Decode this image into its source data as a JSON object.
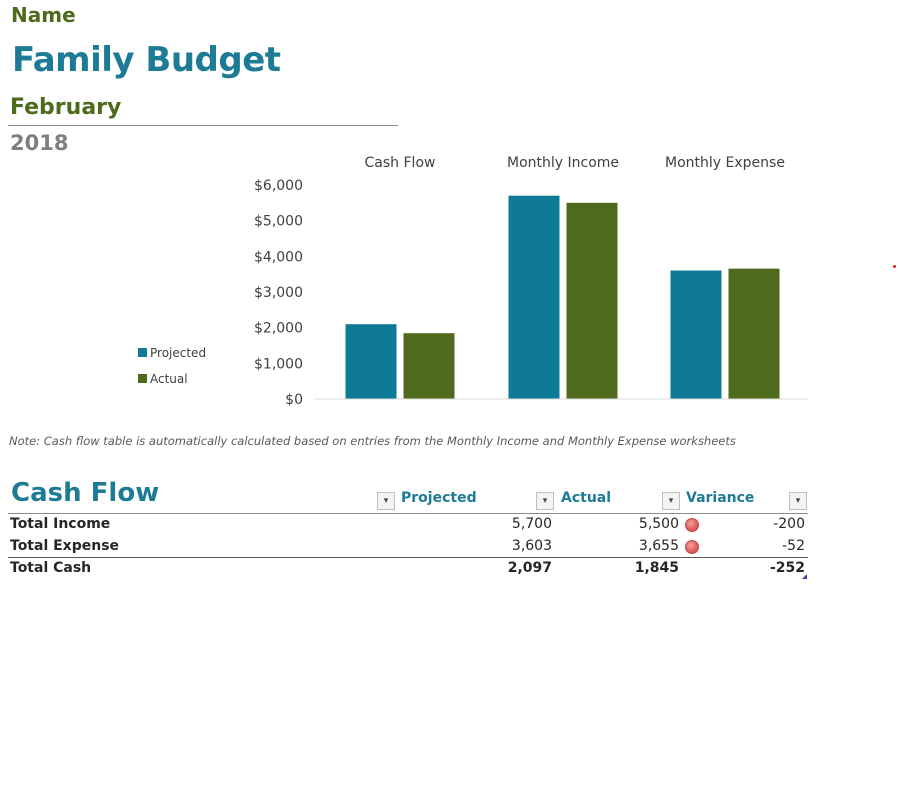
{
  "header": {
    "name_label": "Name",
    "title": "Family Budget",
    "month": "February",
    "year": "2018"
  },
  "colors": {
    "projected": "#0f7a96",
    "actual": "#4e6b1d",
    "title": "#1e7b96",
    "green_text": "#4e6b1d",
    "alert": "#e26060"
  },
  "chart_data": {
    "type": "bar",
    "categories": [
      "Cash Flow",
      "Monthly Income",
      "Monthly Expense"
    ],
    "series": [
      {
        "name": "Projected",
        "values": [
          2097,
          5700,
          3603
        ]
      },
      {
        "name": "Actual",
        "values": [
          1845,
          5500,
          3655
        ]
      }
    ],
    "ylim": [
      0,
      6000
    ],
    "yticks": [
      "$0",
      "$1,000",
      "$2,000",
      "$3,000",
      "$4,000",
      "$5,000",
      "$6,000"
    ],
    "tick_values": [
      0,
      1000,
      2000,
      3000,
      4000,
      5000,
      6000
    ],
    "legend": [
      "Projected",
      "Actual"
    ],
    "legend_position": "left"
  },
  "note": "Note: Cash flow table is automatically calculated based on entries from the Monthly Income and Monthly Expense worksheets",
  "cash_flow": {
    "title": "Cash Flow",
    "columns": {
      "projected": "Projected",
      "actual": "Actual",
      "variance": "Variance"
    },
    "dropdown_glyph": "▾",
    "rows": [
      {
        "label": "Total Income",
        "projected": "5,700",
        "actual": "5,500",
        "variance": "-200",
        "flag": "red-circle-icon"
      },
      {
        "label": "Total Expense",
        "projected": "3,603",
        "actual": "3,655",
        "variance": "-52",
        "flag": "red-circle-icon"
      },
      {
        "label": "Total Cash",
        "projected": "2,097",
        "actual": "1,845",
        "variance": "-252"
      }
    ]
  }
}
